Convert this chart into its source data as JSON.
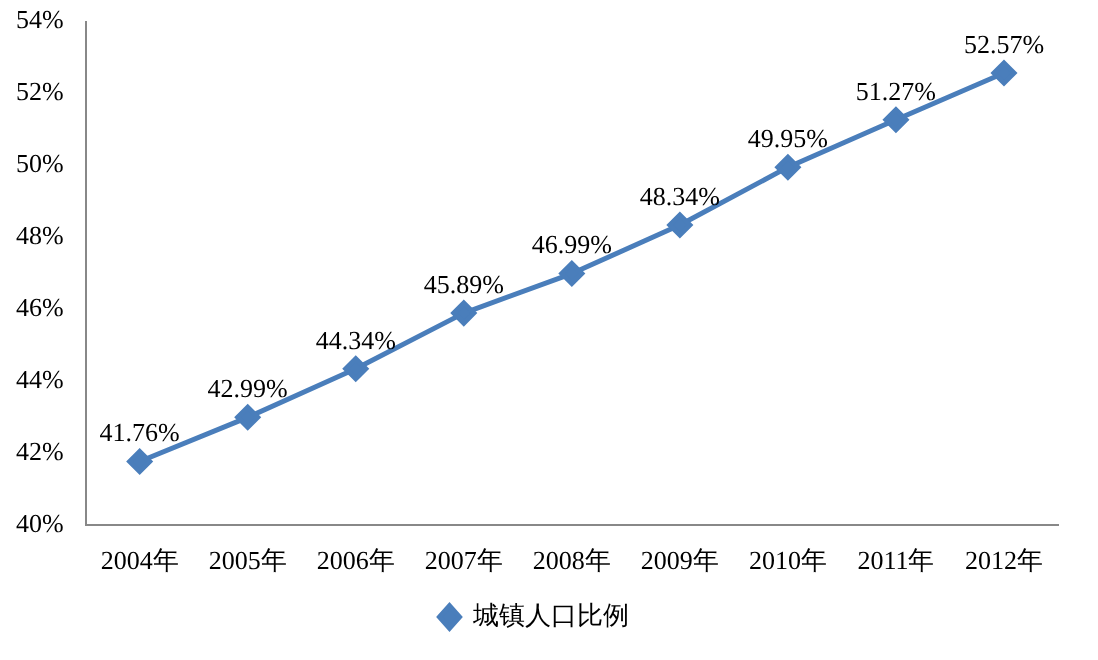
{
  "chart_data": {
    "type": "line",
    "categories": [
      "2004年",
      "2005年",
      "2006年",
      "2007年",
      "2008年",
      "2009年",
      "2010年",
      "2011年",
      "2012年"
    ],
    "series": [
      {
        "name": "城镇人口比例",
        "color": "#4a7ebb",
        "values": [
          41.76,
          42.99,
          44.34,
          45.89,
          46.99,
          48.34,
          49.95,
          51.27,
          52.57
        ],
        "value_labels": [
          "41.76%",
          "42.99%",
          "44.34%",
          "45.89%",
          "46.99%",
          "48.34%",
          "49.95%",
          "51.27%",
          "52.57%"
        ]
      }
    ],
    "ylim": [
      40,
      54
    ],
    "yticks": [
      {
        "value": 40,
        "label": "40%"
      },
      {
        "value": 42,
        "label": "42%"
      },
      {
        "value": 44,
        "label": "44%"
      },
      {
        "value": 46,
        "label": "46%"
      },
      {
        "value": 48,
        "label": "48%"
      },
      {
        "value": 50,
        "label": "50%"
      },
      {
        "value": 52,
        "label": "52%"
      },
      {
        "value": 54,
        "label": "54%"
      }
    ],
    "grid": false,
    "legend": "bottom",
    "marker": "diamond",
    "line_style": "solid"
  }
}
